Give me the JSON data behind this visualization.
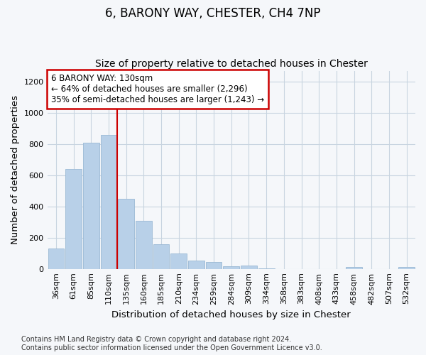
{
  "title": "6, BARONY WAY, CHESTER, CH4 7NP",
  "subtitle": "Size of property relative to detached houses in Chester",
  "xlabel": "Distribution of detached houses by size in Chester",
  "ylabel": "Number of detached properties",
  "categories": [
    "36sqm",
    "61sqm",
    "85sqm",
    "110sqm",
    "135sqm",
    "160sqm",
    "185sqm",
    "210sqm",
    "234sqm",
    "259sqm",
    "284sqm",
    "309sqm",
    "334sqm",
    "358sqm",
    "383sqm",
    "408sqm",
    "433sqm",
    "458sqm",
    "482sqm",
    "507sqm",
    "532sqm"
  ],
  "values": [
    130,
    640,
    810,
    860,
    450,
    310,
    158,
    97,
    55,
    42,
    18,
    22,
    5,
    0,
    0,
    0,
    0,
    10,
    0,
    0,
    10
  ],
  "bar_color": "#b8d0e8",
  "bar_edge_color": "#9ab8d4",
  "red_line_after_bar_index": 3,
  "red_line_color": "#cc0000",
  "annotation_line1": "6 BARONY WAY: 130sqm",
  "annotation_line2": "← 64% of detached houses are smaller (2,296)",
  "annotation_line3": "35% of semi-detached houses are larger (1,243) →",
  "annotation_box_color": "#ffffff",
  "annotation_box_edge_color": "#cc0000",
  "ylim": [
    0,
    1270
  ],
  "yticks": [
    0,
    200,
    400,
    600,
    800,
    1000,
    1200
  ],
  "footer_line1": "Contains HM Land Registry data © Crown copyright and database right 2024.",
  "footer_line2": "Contains public sector information licensed under the Open Government Licence v3.0.",
  "background_color": "#f5f7fa",
  "plot_background_color": "#f5f7fa",
  "grid_color": "#c8d4e0",
  "title_fontsize": 12,
  "subtitle_fontsize": 10,
  "axis_label_fontsize": 9.5,
  "tick_fontsize": 8,
  "annotation_fontsize": 8.5,
  "footer_fontsize": 7
}
